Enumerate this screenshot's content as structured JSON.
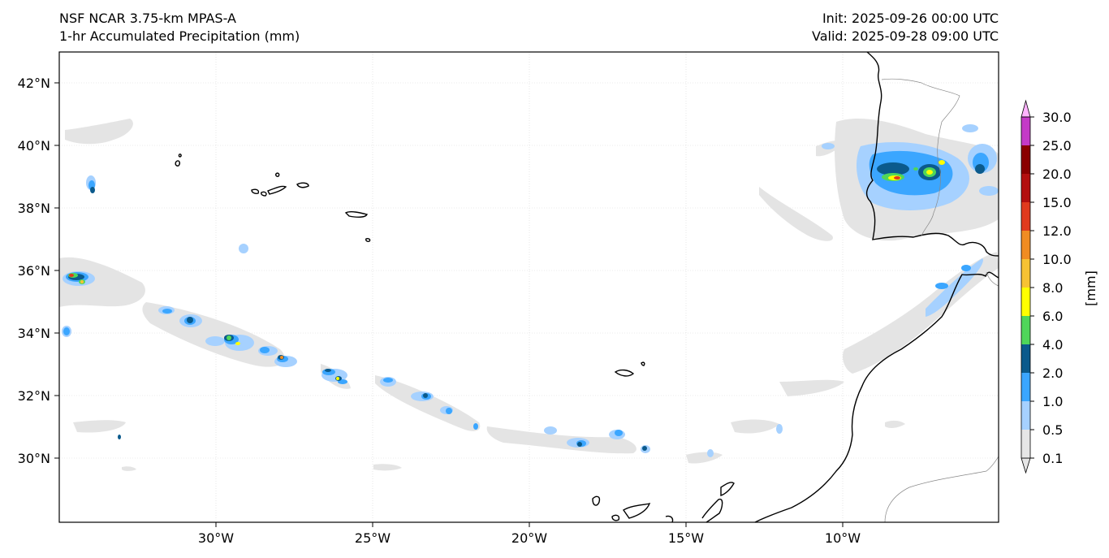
{
  "header": {
    "model": "NSF NCAR 3.75-km MPAS-A",
    "field": "1-hr Accumulated Precipitation (mm)",
    "init": "Init: 2025-09-26 00:00 UTC",
    "valid": "Valid: 2025-09-28 09:00 UTC"
  },
  "axes": {
    "lon_ticks": [
      "30°W",
      "25°W",
      "20°W",
      "15°W",
      "10°W"
    ],
    "lat_ticks": [
      "42°N",
      "40°N",
      "38°N",
      "36°N",
      "34°N",
      "32°N",
      "30°N"
    ]
  },
  "colorbar": {
    "unit_label": "[mm]",
    "levels": [
      "0.1",
      "0.5",
      "1.0",
      "2.0",
      "4.0",
      "6.0",
      "8.0",
      "10.0",
      "12.0",
      "15.0",
      "20.0",
      "25.0",
      "30.0"
    ],
    "colors": [
      "#e6e6e6",
      "#a6d1ff",
      "#3ba6ff",
      "#0b5a8c",
      "#4fd65a",
      "#ffff00",
      "#f7c233",
      "#f08c22",
      "#e03a1e",
      "#b30f0f",
      "#8a0000",
      "#c43ac7",
      "#ffb3ff"
    ]
  }
}
